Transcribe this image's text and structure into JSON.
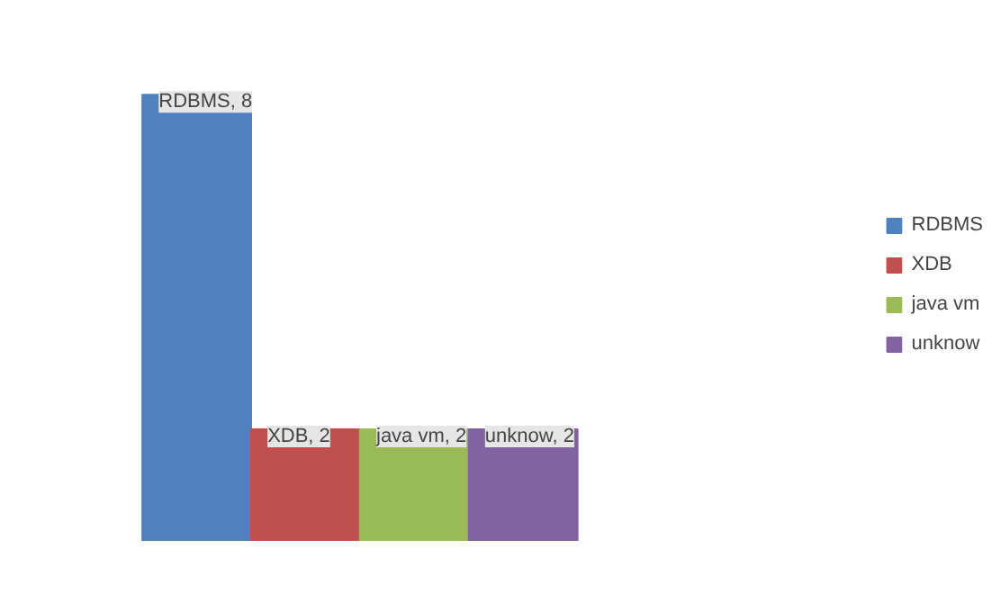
{
  "chart_data": {
    "type": "bar",
    "categories": [
      null
    ],
    "legend": "right",
    "series": [
      {
        "name": "RDBMS",
        "color": "#4f81bd",
        "values": [
          8
        ],
        "value_labels": [
          "RDBMS, 8"
        ]
      },
      {
        "name": "XDB",
        "color": "#c0504d",
        "values": [
          2
        ],
        "value_labels": [
          "XDB, 2"
        ]
      },
      {
        "name": "java vm",
        "color": "#9bbb59",
        "values": [
          2
        ],
        "value_labels": [
          "java vm, 2"
        ]
      },
      {
        "name": "unknow",
        "color": "#8064a2",
        "values": [
          2
        ],
        "value_labels": [
          "unknow, 2"
        ]
      }
    ]
  }
}
